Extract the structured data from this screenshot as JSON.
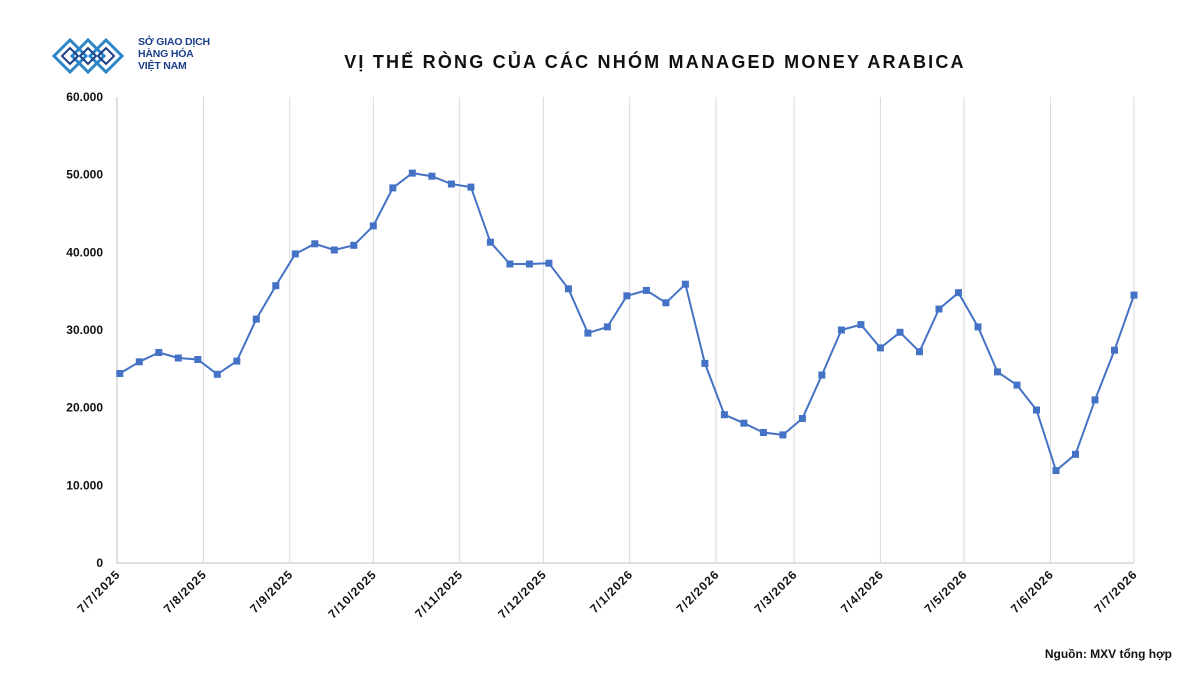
{
  "header": {
    "logo_lines": [
      "SỞ GIAO DỊCH",
      "HÀNG HÓA",
      "VIỆT NAM"
    ],
    "title": "VỊ THẾ RÒNG CỦA CÁC NHÓM MANAGED MONEY ARABICA"
  },
  "footer": {
    "source": "Nguồn: MXV tổng hợp"
  },
  "colors": {
    "series": "#4472c4",
    "grid": "#d9d9d9",
    "brand": "#2e86c8"
  },
  "chart_data": {
    "type": "line",
    "title": "VỊ THẾ RÒNG CỦA CÁC NHÓM MANAGED MONEY ARABICA",
    "xlabel": "",
    "ylabel": "",
    "ylim": [
      0,
      60000
    ],
    "yticks": [
      0,
      10000,
      20000,
      30000,
      40000,
      50000,
      60000
    ],
    "ytick_labels": [
      "0",
      "10.000",
      "20.000",
      "30.000",
      "40.000",
      "50.000",
      "60.000"
    ],
    "x_range": [
      "2025-07-07",
      "2026-07-07"
    ],
    "xticks": [
      "2025-07-07",
      "2025-08-07",
      "2025-09-07",
      "2025-10-07",
      "2025-11-07",
      "2025-12-07",
      "2026-01-07",
      "2026-02-07",
      "2026-03-07",
      "2026-04-07",
      "2026-05-07",
      "2026-06-07",
      "2026-07-07"
    ],
    "xtick_labels": [
      "7/7/2025",
      "7/8/2025",
      "7/9/2025",
      "7/10/2025",
      "7/11/2025",
      "7/12/2025",
      "7/1/2026",
      "7/2/2026",
      "7/3/2026",
      "7/4/2026",
      "7/5/2026",
      "7/6/2026",
      "7/7/2026"
    ],
    "grid": "vertical",
    "legend": "none",
    "marker": "square",
    "series": [
      {
        "x": [
          "2025-07-08",
          "2025-07-15",
          "2025-07-22",
          "2025-07-29",
          "2025-08-05",
          "2025-08-12",
          "2025-08-19",
          "2025-08-26",
          "2025-09-02",
          "2025-09-09",
          "2025-09-16",
          "2025-09-23",
          "2025-09-30",
          "2025-10-07",
          "2025-10-14",
          "2025-10-21",
          "2025-10-28",
          "2025-11-04",
          "2025-11-11",
          "2025-11-18",
          "2025-11-25",
          "2025-12-02",
          "2025-12-09",
          "2025-12-16",
          "2025-12-23",
          "2025-12-30",
          "2026-01-06",
          "2026-01-13",
          "2026-01-20",
          "2026-01-27",
          "2026-02-03",
          "2026-02-10",
          "2026-02-17",
          "2026-02-24",
          "2026-03-03",
          "2026-03-10",
          "2026-03-17",
          "2026-03-24",
          "2026-03-31",
          "2026-04-07",
          "2026-04-14",
          "2026-04-21",
          "2026-04-28",
          "2026-05-05",
          "2026-05-12",
          "2026-05-19",
          "2026-05-26",
          "2026-06-02",
          "2026-06-09",
          "2026-06-16",
          "2026-06-23",
          "2026-06-30",
          "2026-07-07"
        ],
        "values": [
          24400,
          25900,
          27100,
          26400,
          26200,
          24300,
          26000,
          31400,
          35700,
          39800,
          41100,
          40300,
          40900,
          43400,
          48300,
          50200,
          49800,
          48800,
          48400,
          41300,
          38500,
          38500,
          38600,
          35300,
          29600,
          30400,
          34400,
          35100,
          33500,
          35900,
          25700,
          19100,
          18000,
          16800,
          16500,
          18600,
          24200,
          30000,
          30700,
          27700,
          29700,
          27200,
          32700,
          34800,
          30400,
          24600,
          22900,
          19700,
          11900,
          14000,
          21000,
          27400,
          34500
        ]
      }
    ]
  }
}
